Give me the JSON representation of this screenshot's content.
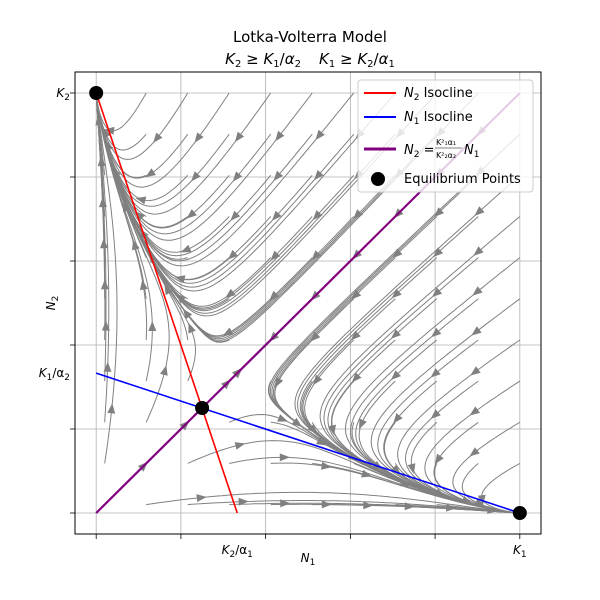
{
  "chart_data": {
    "type": "line",
    "title": "Lotka-Volterra Model",
    "subtitle_parts": {
      "a_K": "K",
      "a_K_sub": "2",
      "a_ge": " ≥ ",
      "a_K2": "K",
      "a_K2_sub": "1",
      "a_div": "/",
      "a_alpha": "α",
      "a_alpha_sub": "2",
      "b_K": "K",
      "b_K_sub": "1",
      "b_ge": " ≥ ",
      "b_K2": "K",
      "b_K2_sub": "2",
      "b_div": "/",
      "b_alpha": "α",
      "b_alpha_sub": "1"
    },
    "xlabel": {
      "main": "N",
      "sub": "1"
    },
    "ylabel": {
      "main": "N",
      "sub": "2"
    },
    "xlim": [
      -0.05,
      1.05
    ],
    "ylim": [
      -0.05,
      1.05
    ],
    "grid": true,
    "legend_position": "top-right",
    "x_ticks": [
      {
        "value": 0,
        "label": ""
      },
      {
        "value": 0.2,
        "label": ""
      },
      {
        "value": 0.4,
        "label": ""
      },
      {
        "value": 0.6,
        "label": ""
      },
      {
        "value": 0.8,
        "label": ""
      },
      {
        "value": 1.0,
        "label": ""
      }
    ],
    "y_ticks": [
      {
        "value": 0,
        "label": ""
      },
      {
        "value": 0.2,
        "label": ""
      },
      {
        "value": 0.4,
        "label": ""
      },
      {
        "value": 0.6,
        "label": ""
      },
      {
        "value": 0.8,
        "label": ""
      },
      {
        "value": 1.0,
        "label": ""
      }
    ],
    "special_x_labels": [
      {
        "value": 0.333,
        "main": "K",
        "sub": "2",
        "tail": "/α",
        "tail_sub": "1"
      },
      {
        "value": 1.0,
        "main": "K",
        "sub": "1",
        "tail": "",
        "tail_sub": ""
      }
    ],
    "special_y_labels": [
      {
        "value": 1.0,
        "main": "K",
        "sub": "2",
        "tail": "",
        "tail_sub": ""
      },
      {
        "value": 0.333,
        "main": "K",
        "sub": "1",
        "tail": "/α",
        "tail_sub": "2"
      }
    ],
    "series": [
      {
        "name": "N2 Isocline",
        "color": "#ff0000",
        "x": [
          0,
          0.333
        ],
        "y": [
          1.0,
          0
        ]
      },
      {
        "name": "N1 Isocline",
        "color": "#0000ff",
        "x": [
          0,
          1.0
        ],
        "y": [
          0.333,
          0
        ]
      },
      {
        "name": "N2 = (K1²α1 / K2²α2) N1",
        "color": "#800080",
        "x": [
          0,
          1.0
        ],
        "y": [
          0,
          1.0
        ]
      }
    ],
    "equilibrium_points": [
      {
        "x": 0,
        "y": 1.0
      },
      {
        "x": 0.25,
        "y": 0.25
      },
      {
        "x": 1.0,
        "y": 0
      }
    ],
    "legend": [
      {
        "kind": "line",
        "color": "#ff0000",
        "main": "N",
        "sub": "2",
        "tail": " Isocline"
      },
      {
        "kind": "line",
        "color": "#0000ff",
        "main": "N",
        "sub": "1",
        "tail": " Isocline"
      },
      {
        "kind": "line-formula",
        "color": "#800080",
        "main": "N",
        "sub": "2",
        "eq": " = ",
        "num": "K²₁α₁",
        "den": "K²₂α₂",
        "tail_main": "N",
        "tail_sub": "1"
      },
      {
        "kind": "point",
        "color": "#000000",
        "main": "Equilibrium Points",
        "sub": "",
        "tail": ""
      }
    ],
    "stream_color": "#808080"
  }
}
